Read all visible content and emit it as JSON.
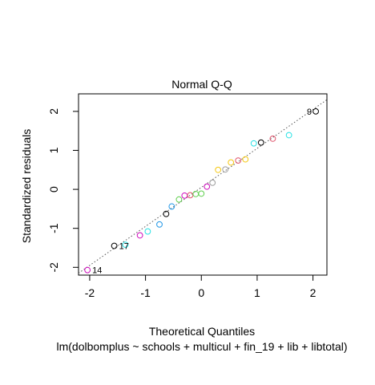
{
  "chart_data": {
    "type": "scatter",
    "title": "Normal Q-Q",
    "xlabel": "Theoretical Quantiles",
    "ylabel": "Standardized residuals",
    "subtitle": "lm(dolbomplus ~ schools + multicul + fin_19 + lib + libtotal)",
    "xlim": [
      -2.2,
      2.25
    ],
    "ylim": [
      -2.2,
      2.45
    ],
    "x_ticks": [
      -2,
      -1,
      0,
      1,
      2
    ],
    "y_ticks": [
      -2,
      -1,
      0,
      1,
      2
    ],
    "x_tick_labels": [
      "-2",
      "-1",
      "0",
      "1",
      "2"
    ],
    "y_tick_labels": [
      "-2",
      "-1",
      "0",
      "1",
      "2"
    ],
    "reference_line": {
      "intercept": 0.05,
      "slope": 1.0,
      "style": "dotted",
      "color": "#555555"
    },
    "points": [
      {
        "x": -2.04,
        "y": -2.07,
        "color": "#CD0BBC"
      },
      {
        "x": -1.56,
        "y": -1.45,
        "color": "#000000"
      },
      {
        "x": -1.36,
        "y": -1.42,
        "color": "#28E2E5"
      },
      {
        "x": -1.1,
        "y": -1.18,
        "color": "#CD0BBC"
      },
      {
        "x": -0.96,
        "y": -1.08,
        "color": "#28E2E5"
      },
      {
        "x": -0.75,
        "y": -0.9,
        "color": "#2297E6"
      },
      {
        "x": -0.63,
        "y": -0.63,
        "color": "#000000"
      },
      {
        "x": -0.53,
        "y": -0.44,
        "color": "#2297E6"
      },
      {
        "x": -0.4,
        "y": -0.26,
        "color": "#61D04F"
      },
      {
        "x": -0.3,
        "y": -0.16,
        "color": "#CD0BBC"
      },
      {
        "x": -0.2,
        "y": -0.15,
        "color": "#DF536B"
      },
      {
        "x": -0.1,
        "y": -0.12,
        "color": "#61D04F"
      },
      {
        "x": 0.0,
        "y": -0.11,
        "color": "#61D04F"
      },
      {
        "x": 0.1,
        "y": 0.07,
        "color": "#CD0BBC"
      },
      {
        "x": 0.2,
        "y": 0.17,
        "color": "#9E9E9E"
      },
      {
        "x": 0.3,
        "y": 0.5,
        "color": "#F5C710"
      },
      {
        "x": 0.43,
        "y": 0.51,
        "color": "#9E9E9E"
      },
      {
        "x": 0.53,
        "y": 0.69,
        "color": "#F5C710"
      },
      {
        "x": 0.66,
        "y": 0.74,
        "color": "#DF536B"
      },
      {
        "x": 0.79,
        "y": 0.77,
        "color": "#F5C710"
      },
      {
        "x": 0.94,
        "y": 1.18,
        "color": "#28E2E5"
      },
      {
        "x": 1.07,
        "y": 1.2,
        "color": "#000000"
      },
      {
        "x": 1.28,
        "y": 1.3,
        "color": "#DF536B"
      },
      {
        "x": 1.57,
        "y": 1.39,
        "color": "#28E2E5"
      },
      {
        "x": 2.05,
        "y": 2.0,
        "color": "#000000"
      }
    ],
    "point_labels": [
      {
        "text": "14",
        "x": -2.04,
        "y": -2.07
      },
      {
        "text": "17",
        "x": -1.56,
        "y": -1.45
      },
      {
        "text": "9",
        "x": 2.05,
        "y": 2.0
      }
    ]
  }
}
